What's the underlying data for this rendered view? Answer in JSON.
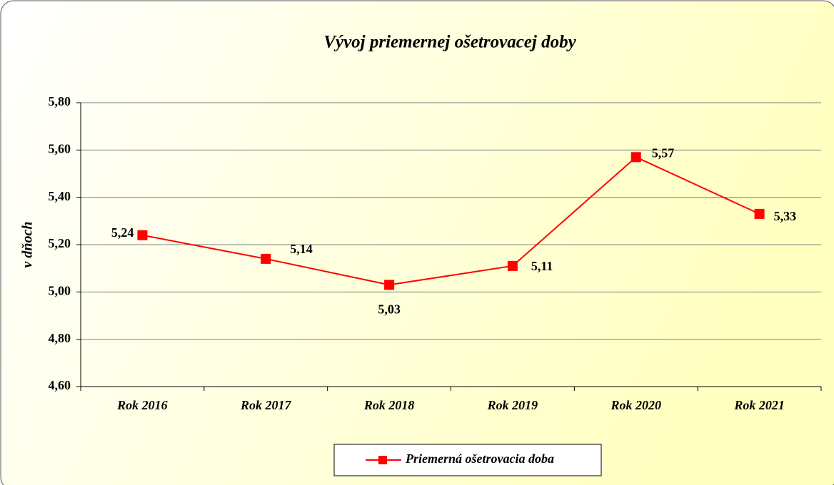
{
  "chart_data": {
    "type": "line",
    "title": "Vývoj priemernej ošetrovacej doby",
    "y_label": "v dňoch",
    "categories": [
      "Rok 2016",
      "Rok 2017",
      "Rok 2018",
      "Rok 2019",
      "Rok 2020",
      "Rok 2021"
    ],
    "series": [
      {
        "name": "Priemerná ošetrovacia doba",
        "color": "#ff0000",
        "values": [
          5.24,
          5.14,
          5.03,
          5.11,
          5.57,
          5.33
        ],
        "value_labels": [
          "5,24",
          "5,14",
          "5,03",
          "5,11",
          "5,57",
          "5,33"
        ]
      }
    ],
    "ylim": [
      4.6,
      5.8
    ],
    "yticks": [
      {
        "value": 4.6,
        "label": "4,60"
      },
      {
        "value": 4.8,
        "label": "4,80"
      },
      {
        "value": 5.0,
        "label": "5,00"
      },
      {
        "value": 5.2,
        "label": "5,20"
      },
      {
        "value": 5.4,
        "label": "5,40"
      },
      {
        "value": 5.6,
        "label": "5,60"
      },
      {
        "value": 5.8,
        "label": "5,80"
      }
    ],
    "grid": true,
    "legend": "bottom"
  }
}
